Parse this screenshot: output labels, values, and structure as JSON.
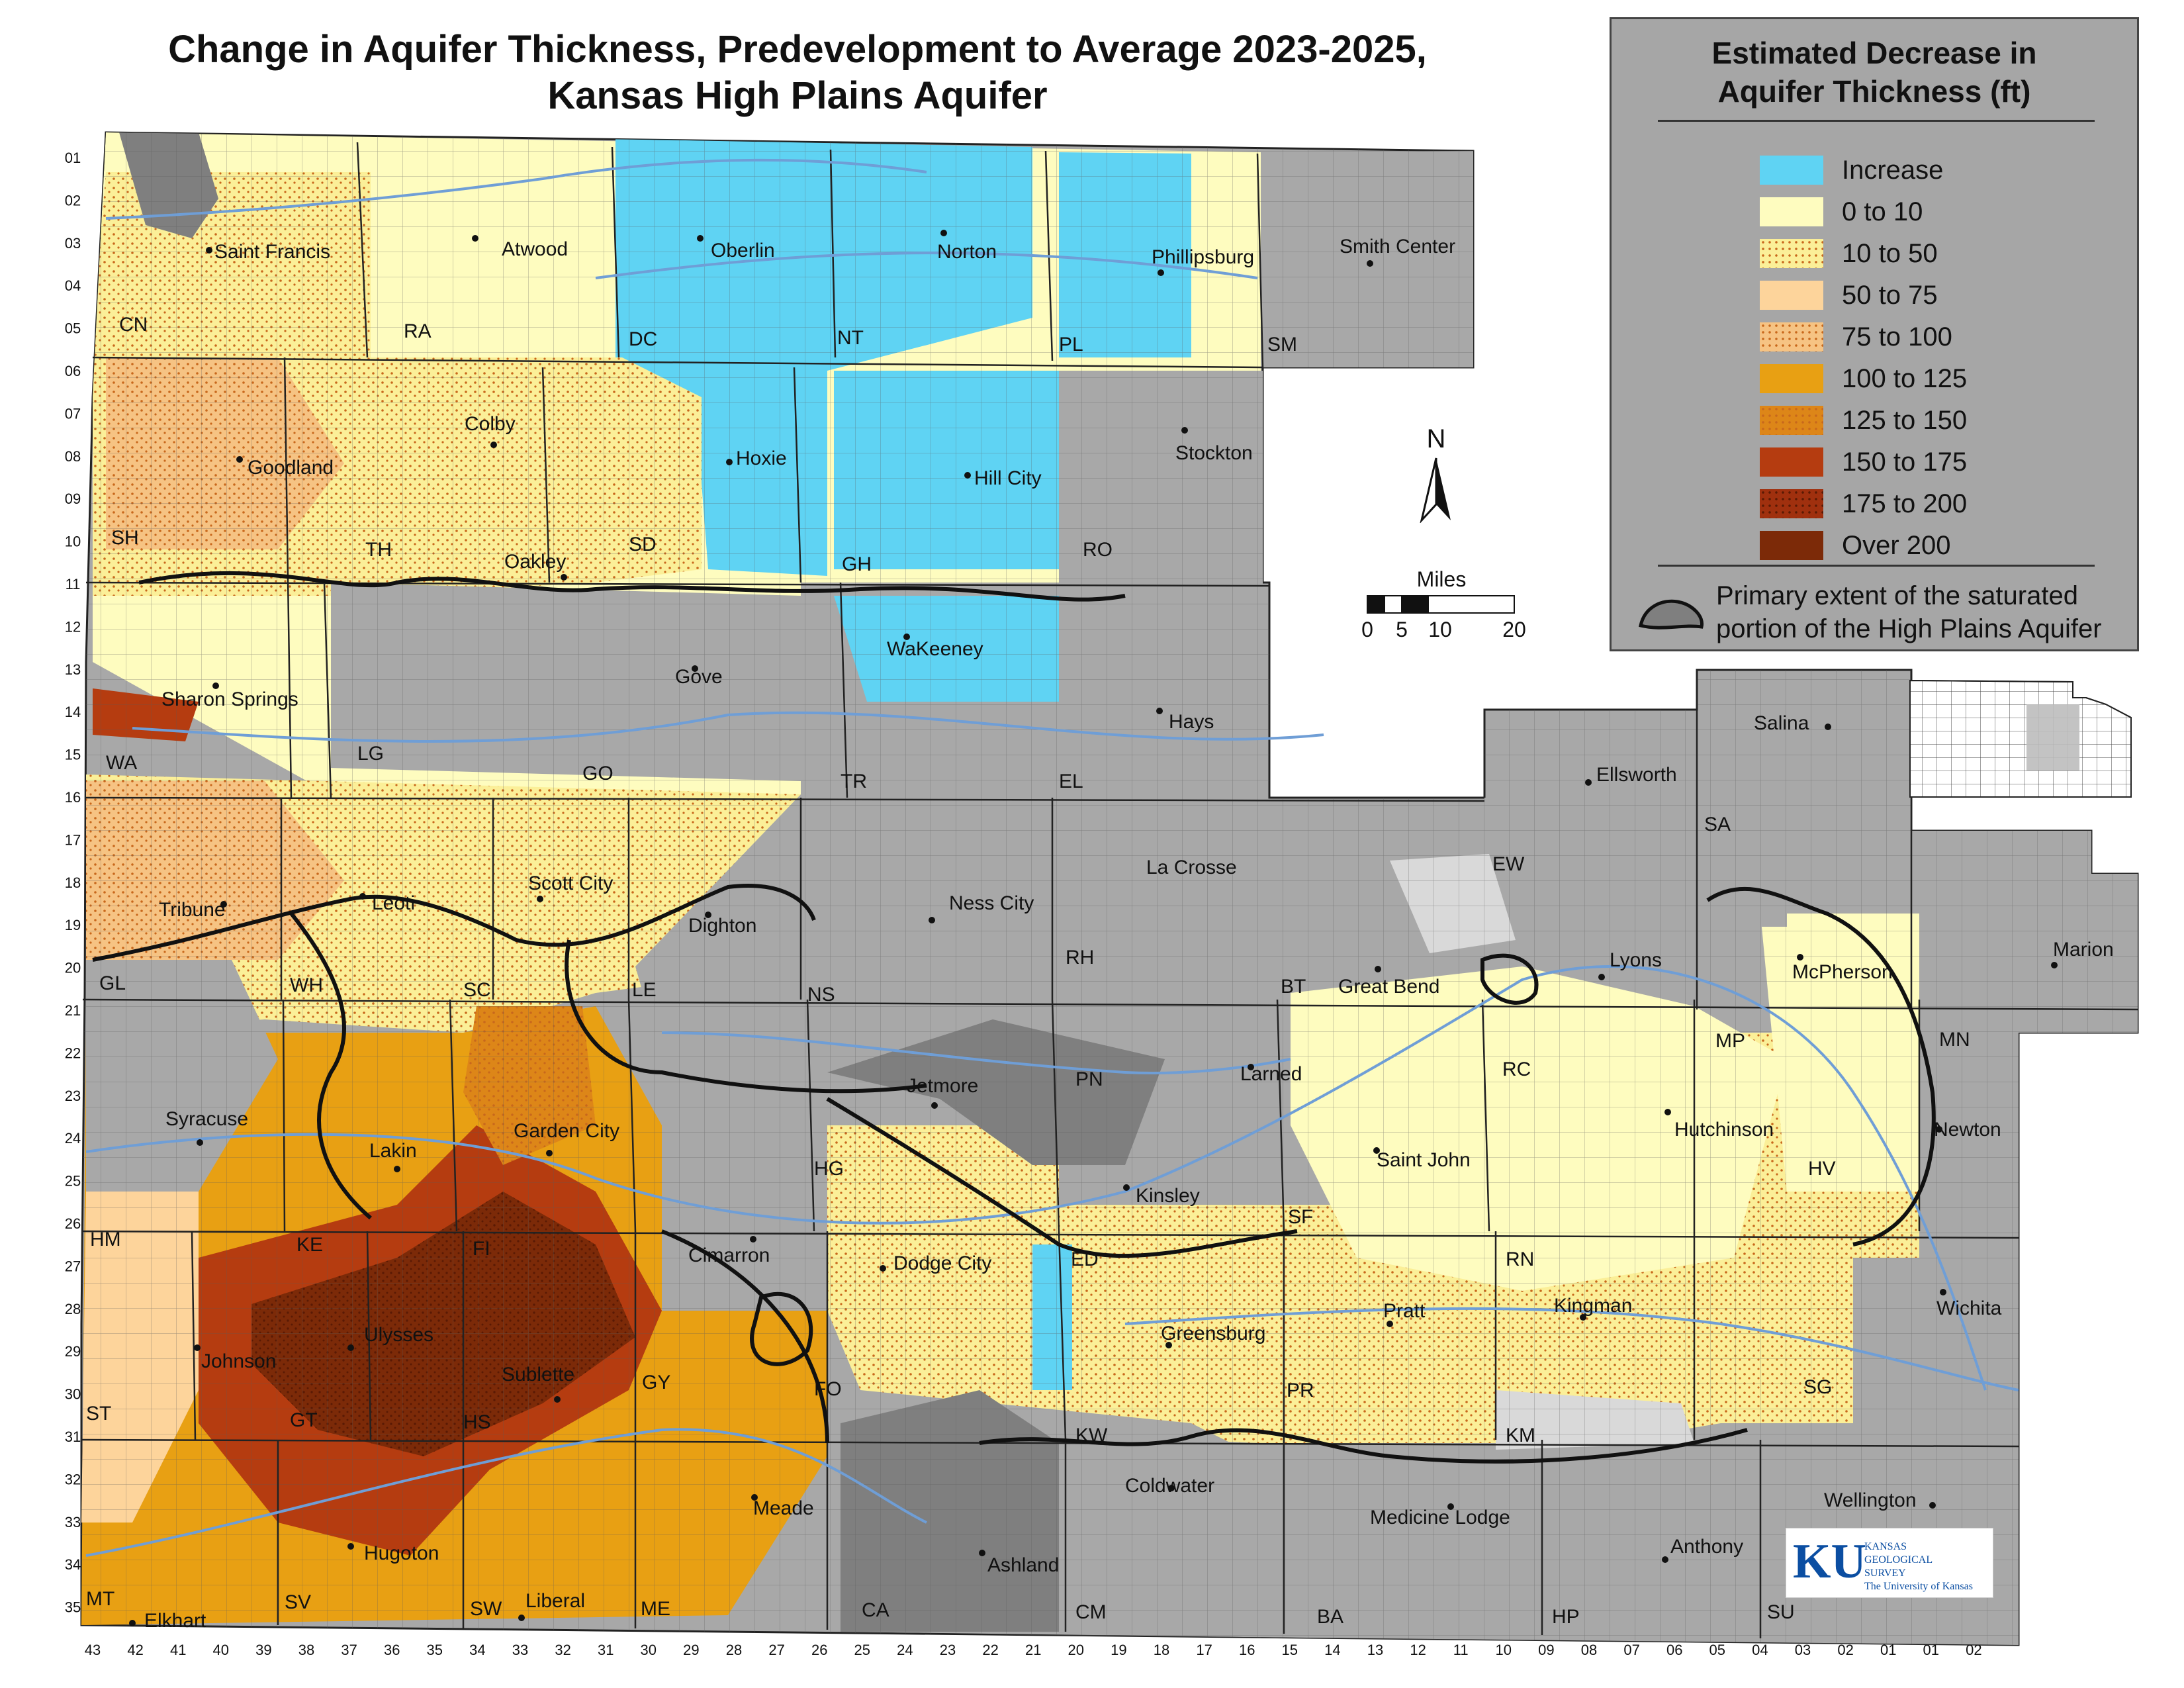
{
  "title_line1": "Change in Aquifer Thickness, Predevelopment to Average 2023-2025,",
  "title_line2": "Kansas High Plains Aquifer",
  "legend": {
    "title_line1": "Estimated Decrease in",
    "title_line2": "Aquifer Thickness (ft)",
    "classes": [
      {
        "label": "Increase",
        "color": "#5fd3f3",
        "pattern": false
      },
      {
        "label": "0 to 10",
        "color": "#fefcbf",
        "pattern": false
      },
      {
        "label": "10 to 50",
        "color": "#fbef98",
        "pattern": true
      },
      {
        "label": "50 to 75",
        "color": "#fdd49b",
        "pattern": false
      },
      {
        "label": "75 to 100",
        "color": "#f6c383",
        "pattern": true
      },
      {
        "label": "100 to 125",
        "color": "#e8a013",
        "pattern": false
      },
      {
        "label": "125 to 150",
        "color": "#dd8618",
        "pattern": true
      },
      {
        "label": "150 to 175",
        "color": "#b53c10",
        "pattern": false
      },
      {
        "label": "175 to 200",
        "color": "#a0300e",
        "pattern": true
      },
      {
        "label": "Over 200",
        "color": "#7c2a08",
        "pattern": false
      }
    ],
    "extent_line1": "Primary extent of the saturated",
    "extent_line2": "portion of the High Plains Aquifer"
  },
  "north_label": "N",
  "scale": {
    "title": "Miles",
    "ticks": [
      "0",
      "5",
      "10",
      "20"
    ]
  },
  "logo": {
    "mark": "KU",
    "line1": "KANSAS",
    "line2": "GEOLOGICAL",
    "line3": "SURVEY",
    "line4": "The University of Kansas"
  },
  "colors": {
    "outside": "#a8a8a8",
    "dark_gray": "#7f7f7f",
    "light_gray": "#d9d9d9",
    "river": "#6f9ed6",
    "boundary": "#111111"
  },
  "cities": [
    "Saint Francis",
    "Atwood",
    "Oberlin",
    "Norton",
    "Phillipsburg",
    "Smith Center",
    "Goodland",
    "Colby",
    "Hoxie",
    "Hill City",
    "Stockton",
    "Oakley",
    "WaKeeney",
    "Gove",
    "Hays",
    "Sharon Springs",
    "Tribune",
    "Leoti",
    "Scott City",
    "Dighton",
    "Ness City",
    "La Crosse",
    "Ellsworth",
    "Salina",
    "Lyons",
    "Great Bend",
    "McPherson",
    "Marion",
    "Syracuse",
    "Lakin",
    "Garden City",
    "Jetmore",
    "Larned",
    "Saint John",
    "Kinsley",
    "Hutchinson",
    "Newton",
    "Cimarron",
    "Dodge City",
    "Kingman",
    "Pratt",
    "Greensburg",
    "Wichita",
    "Johnson",
    "Ulysses",
    "Sublette",
    "Meade",
    "Coldwater",
    "Ashland",
    "Medicine Lodge",
    "Hugoton",
    "Liberal",
    "Elkhart",
    "Anthony",
    "Wellington"
  ],
  "counties": [
    "CN",
    "RA",
    "DC",
    "NT",
    "PL",
    "SM",
    "SH",
    "TH",
    "SD",
    "GH",
    "RO",
    "WA",
    "LG",
    "GO",
    "TR",
    "EL",
    "SA",
    "EW",
    "GL",
    "WH",
    "SC",
    "LE",
    "NS",
    "RH",
    "BT",
    "RC",
    "MP",
    "MN",
    "PN",
    "HG",
    "HM",
    "KE",
    "FI",
    "ED",
    "SF",
    "RN",
    "HV",
    "GY",
    "FO",
    "PR",
    "KW",
    "KM",
    "SG",
    "ST",
    "GT",
    "HS",
    "MT",
    "SV",
    "SW",
    "ME",
    "CA",
    "CM",
    "BA",
    "HP",
    "SU"
  ],
  "row_ticks": [
    "01",
    "02",
    "03",
    "04",
    "05",
    "06",
    "07",
    "08",
    "09",
    "10",
    "11",
    "12",
    "13",
    "14",
    "15",
    "16",
    "17",
    "18",
    "19",
    "20",
    "21",
    "22",
    "23",
    "24",
    "25",
    "26",
    "27",
    "28",
    "29",
    "30",
    "31",
    "32",
    "33",
    "34",
    "35"
  ],
  "col_ticks": [
    "43",
    "42",
    "41",
    "40",
    "39",
    "38",
    "37",
    "36",
    "35",
    "34",
    "33",
    "32",
    "31",
    "30",
    "29",
    "28",
    "27",
    "26",
    "25",
    "24",
    "23",
    "22",
    "21",
    "20",
    "19",
    "18",
    "17",
    "16",
    "15",
    "14",
    "13",
    "12",
    "11",
    "10",
    "09",
    "08",
    "07",
    "06",
    "05",
    "04",
    "03",
    "02",
    "01",
    "01",
    "02"
  ]
}
